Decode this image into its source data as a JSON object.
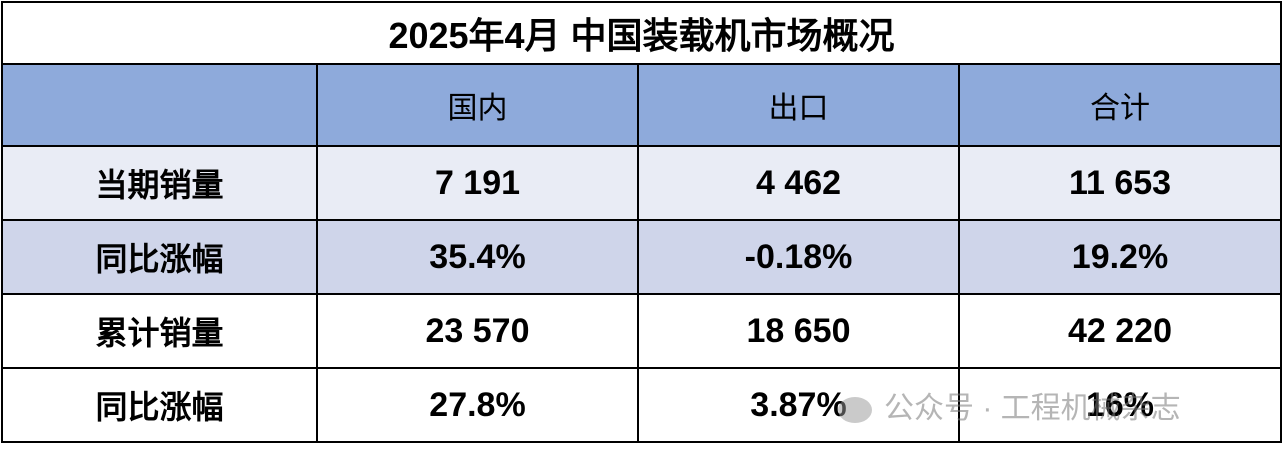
{
  "header": {
    "title": "2025年4月 中国装载机市场概况"
  },
  "table": {
    "columns": [
      "国内",
      "出口",
      "合计"
    ],
    "rows": [
      {
        "label": "当期销量",
        "cells": [
          "7 191",
          "4 462",
          "11 653"
        ]
      },
      {
        "label": "同比涨幅",
        "cells": [
          "35.4%",
          "-0.18%",
          "19.2%"
        ]
      },
      {
        "label": "累计销量",
        "cells": [
          "23 570",
          "18 650",
          "42 220"
        ]
      },
      {
        "label": "同比涨幅",
        "cells": [
          "27.8%",
          "3.87%",
          "16%"
        ]
      }
    ]
  },
  "watermark": "公众号 · 工程机械杂志"
}
